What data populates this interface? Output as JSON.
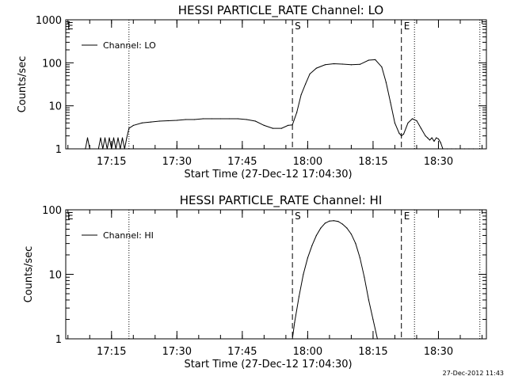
{
  "chart_data": [
    {
      "type": "line",
      "title": "HESSI PARTICLE_RATE Channel: LO",
      "xlabel": "Start Time (27-Dec-12 17:04:30)",
      "ylabel": "Counts/sec",
      "yscale": "log",
      "ylim": [
        1,
        1000
      ],
      "xlim": [
        "17:04:30",
        "18:41:00"
      ],
      "xticks": [
        "17:15",
        "17:30",
        "17:45",
        "18:00",
        "18:15",
        "18:30"
      ],
      "yticks": [
        "1",
        "10",
        "100",
        "1000"
      ],
      "legend": {
        "label": "Channel: LO",
        "position": "top-left"
      },
      "markers": [
        {
          "label": "S",
          "time": "17:56:30",
          "style": "dashed"
        },
        {
          "label": "E",
          "time": "18:21:30",
          "style": "dashed"
        },
        {
          "label": "",
          "time": "17:19:00",
          "style": "dotted"
        },
        {
          "label": "",
          "time": "18:24:30",
          "style": "dotted"
        },
        {
          "label": "",
          "time": "18:39:30",
          "style": "dotted"
        }
      ],
      "corner_label": "E",
      "series": [
        {
          "name": "Channel: LO",
          "x": [
            "17:09:00",
            "17:09:30",
            "17:10:00",
            "17:12:00",
            "17:12:30",
            "17:13:00",
            "17:13:30",
            "17:14:00",
            "17:14:30",
            "17:15:00",
            "17:15:30",
            "17:16:00",
            "17:16:30",
            "17:17:00",
            "17:17:30",
            "17:18:00",
            "17:18:30",
            "17:19:00",
            "17:20:00",
            "17:22:00",
            "17:24:00",
            "17:26:00",
            "17:28:00",
            "17:30:00",
            "17:32:00",
            "17:34:00",
            "17:36:00",
            "17:38:00",
            "17:40:00",
            "17:42:00",
            "17:44:00",
            "17:46:00",
            "17:48:00",
            "17:50:00",
            "17:52:00",
            "17:54:00",
            "17:55:30",
            "17:56:30",
            "17:57:30",
            "17:58:30",
            "17:59:30",
            "18:00:30",
            "18:02:00",
            "18:04:00",
            "18:06:00",
            "18:08:00",
            "18:10:00",
            "18:12:00",
            "18:14:00",
            "18:15:30",
            "18:17:00",
            "18:18:00",
            "18:19:00",
            "18:20:00",
            "18:21:00",
            "18:21:30",
            "18:22:00",
            "18:23:00",
            "18:24:00",
            "18:25:00",
            "18:26:00",
            "18:27:00",
            "18:27:30",
            "18:28:00",
            "18:28:30",
            "18:29:00",
            "18:29:30",
            "18:30:00",
            "18:30:30",
            "18:31:00",
            "18:32:00",
            "18:33:00",
            "18:34:00",
            "18:35:00",
            "18:36:00",
            "18:37:00",
            "18:38:00"
          ],
          "y": [
            1,
            1.8,
            1,
            1,
            1.8,
            1,
            1.8,
            1,
            1.8,
            1,
            1.8,
            1,
            1.8,
            1,
            1.8,
            1,
            1.8,
            3,
            3.5,
            4,
            4.2,
            4.4,
            4.5,
            4.6,
            4.8,
            4.8,
            5,
            5,
            5,
            5,
            5,
            4.8,
            4.4,
            3.5,
            3,
            3,
            3.5,
            3.6,
            7,
            18,
            32,
            55,
            75,
            90,
            95,
            93,
            90,
            92,
            115,
            118,
            80,
            35,
            12,
            4,
            2.3,
            2,
            2.2,
            4,
            5,
            4.5,
            3,
            2,
            1.8,
            1.6,
            1.8,
            1.5,
            1.8,
            1.7,
            1.4,
            1,
            1,
            1,
            1,
            1,
            1,
            1,
            1
          ]
        }
      ]
    },
    {
      "type": "line",
      "title": "HESSI PARTICLE_RATE Channel: HI",
      "xlabel": "Start Time (27-Dec-12 17:04:30)",
      "ylabel": "Counts/sec",
      "yscale": "log",
      "ylim": [
        1,
        100
      ],
      "xlim": [
        "17:04:30",
        "18:41:00"
      ],
      "xticks": [
        "17:15",
        "17:30",
        "17:45",
        "18:00",
        "18:15",
        "18:30"
      ],
      "yticks": [
        "1",
        "10",
        "100"
      ],
      "legend": {
        "label": "Channel: HI",
        "position": "top-left"
      },
      "markers": [
        {
          "label": "S",
          "time": "17:56:30",
          "style": "dashed"
        },
        {
          "label": "E",
          "time": "18:21:30",
          "style": "dashed"
        },
        {
          "label": "",
          "time": "17:19:00",
          "style": "dotted"
        },
        {
          "label": "",
          "time": "18:24:30",
          "style": "dotted"
        },
        {
          "label": "",
          "time": "18:39:30",
          "style": "dotted"
        }
      ],
      "corner_label": "E",
      "series": [
        {
          "name": "Channel: HI",
          "x": [
            "17:56:30",
            "17:57:00",
            "17:58:00",
            "17:59:00",
            "18:00:00",
            "18:01:00",
            "18:02:00",
            "18:03:00",
            "18:04:00",
            "18:05:00",
            "18:06:00",
            "18:07:00",
            "18:08:00",
            "18:09:00",
            "18:10:00",
            "18:11:00",
            "18:12:00",
            "18:13:00",
            "18:14:00",
            "18:15:00",
            "18:16:00"
          ],
          "y": [
            1,
            1.8,
            4.5,
            10,
            18,
            28,
            40,
            52,
            62,
            67,
            68,
            66,
            60,
            52,
            42,
            30,
            18,
            9,
            4,
            2,
            1
          ]
        }
      ]
    }
  ],
  "footer": {
    "timestamp": "27-Dec-2012 11:43"
  }
}
